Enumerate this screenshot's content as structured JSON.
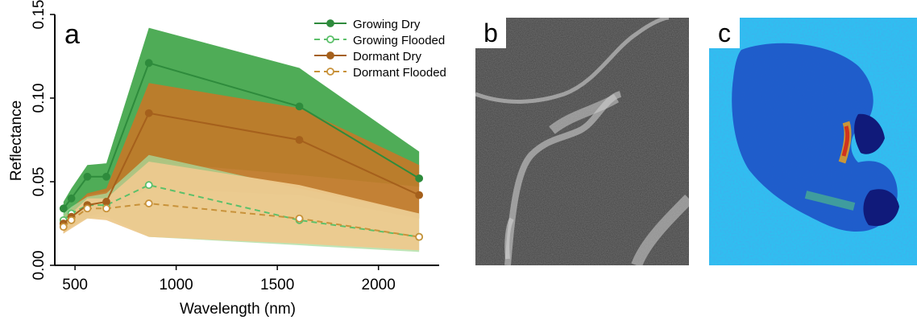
{
  "chart_data": {
    "type": "line",
    "panel_label": "a",
    "xlabel": "Wavelength (nm)",
    "ylabel": "Reflectance",
    "xlim": [
      400,
      2300
    ],
    "ylim": [
      0,
      0.15
    ],
    "xticks": [
      500,
      1000,
      1500,
      2000
    ],
    "xtick_labels": [
      "500",
      "1000",
      "1500",
      "2000"
    ],
    "yticks": [
      0,
      0.05,
      0.1,
      0.15
    ],
    "ytick_labels": [
      "0.00",
      "0.05",
      "0.10",
      "0.15"
    ],
    "grid": false,
    "legend_position": "top-right",
    "x": [
      443,
      482,
      561,
      655,
      865,
      1609,
      2201
    ],
    "series": [
      {
        "name": "Growing Dry",
        "style": "solid",
        "marker": "filled",
        "color": "#2e8b3c",
        "values": [
          0.034,
          0.04,
          0.053,
          0.053,
          0.121,
          0.095,
          0.052
        ],
        "band_upper": [
          0.038,
          0.046,
          0.06,
          0.061,
          0.142,
          0.118,
          0.068
        ],
        "band_lower": [
          0.022,
          0.03,
          0.042,
          0.044,
          0.062,
          0.054,
          0.047
        ],
        "band_color": "#46a84e"
      },
      {
        "name": "Growing Flooded",
        "style": "dashed",
        "marker": "open",
        "color": "#5cc06a",
        "values": [
          0.027,
          0.031,
          0.036,
          0.036,
          0.048,
          0.027,
          0.017
        ],
        "band_upper": [
          0.031,
          0.035,
          0.041,
          0.043,
          0.066,
          0.046,
          0.031
        ],
        "band_lower": [
          0.021,
          0.024,
          0.028,
          0.029,
          0.017,
          0.012,
          0.008
        ],
        "band_color": "#a8dc9e"
      },
      {
        "name": "Dormant Dry",
        "style": "solid",
        "marker": "filled",
        "color": "#a5601c",
        "values": [
          0.025,
          0.029,
          0.036,
          0.038,
          0.091,
          0.075,
          0.042
        ],
        "band_upper": [
          0.029,
          0.034,
          0.043,
          0.046,
          0.109,
          0.094,
          0.06
        ],
        "band_lower": [
          0.019,
          0.023,
          0.029,
          0.032,
          0.046,
          0.042,
          0.028
        ],
        "band_color": "#c07a2a"
      },
      {
        "name": "Dormant Flooded",
        "style": "dashed",
        "marker": "open",
        "color": "#c8923a",
        "values": [
          0.023,
          0.027,
          0.034,
          0.034,
          0.037,
          0.028,
          0.017
        ],
        "band_upper": [
          0.027,
          0.031,
          0.04,
          0.04,
          0.062,
          0.048,
          0.031
        ],
        "band_lower": [
          0.019,
          0.022,
          0.028,
          0.027,
          0.017,
          0.013,
          0.009
        ],
        "band_color": "#edc98e"
      }
    ]
  },
  "panels": {
    "b_label": "b",
    "c_label": "c"
  }
}
